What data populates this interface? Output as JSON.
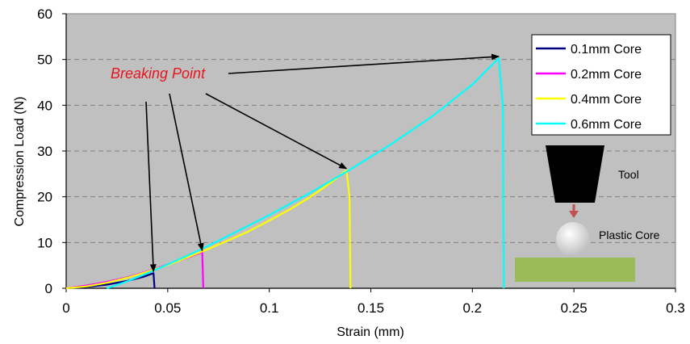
{
  "chart_data": {
    "type": "line",
    "title": "",
    "xlabel": "Strain (mm)",
    "ylabel": "Compression Load (N)",
    "xlim": [
      0,
      0.3
    ],
    "ylim": [
      0,
      60
    ],
    "x_ticks": [
      "0",
      "0.05",
      "0.1",
      "0.15",
      "0.2",
      "0.25",
      "0.3"
    ],
    "y_ticks": [
      "0",
      "10",
      "20",
      "30",
      "40",
      "50",
      "60"
    ],
    "grid": "horizontal dashed",
    "legend_position": "top-right",
    "series": [
      {
        "name": "0.1mm Core",
        "color": "#000080",
        "points": [
          [
            0,
            0
          ],
          [
            0.01,
            0.3
          ],
          [
            0.02,
            0.8
          ],
          [
            0.03,
            1.6
          ],
          [
            0.038,
            2.5
          ],
          [
            0.043,
            3.3
          ],
          [
            0.0435,
            0
          ]
        ]
      },
      {
        "name": "0.2mm Core",
        "color": "#ff00ff",
        "points": [
          [
            0,
            0
          ],
          [
            0.01,
            0.6
          ],
          [
            0.02,
            1.4
          ],
          [
            0.03,
            2.4
          ],
          [
            0.04,
            3.7
          ],
          [
            0.05,
            5.2
          ],
          [
            0.06,
            6.7
          ],
          [
            0.067,
            7.9
          ],
          [
            0.0675,
            0
          ]
        ]
      },
      {
        "name": "0.4mm Core",
        "color": "#ffff00",
        "points": [
          [
            0,
            0
          ],
          [
            0.01,
            0.4
          ],
          [
            0.02,
            1.2
          ],
          [
            0.03,
            2.3
          ],
          [
            0.04,
            3.6
          ],
          [
            0.05,
            5.1
          ],
          [
            0.06,
            6.8
          ],
          [
            0.07,
            8.6
          ],
          [
            0.08,
            10.5
          ],
          [
            0.09,
            12.5
          ],
          [
            0.1,
            14.8
          ],
          [
            0.11,
            17.2
          ],
          [
            0.12,
            19.9
          ],
          [
            0.13,
            23
          ],
          [
            0.138,
            25.8
          ],
          [
            0.1395,
            20
          ],
          [
            0.14,
            0
          ]
        ]
      },
      {
        "name": "0.6mm Core",
        "color": "#00ffff",
        "points": [
          [
            0.02,
            0
          ],
          [
            0.03,
            1.5
          ],
          [
            0.04,
            3.3
          ],
          [
            0.05,
            5.2
          ],
          [
            0.06,
            7.2
          ],
          [
            0.07,
            9.3
          ],
          [
            0.08,
            11.5
          ],
          [
            0.1,
            16
          ],
          [
            0.12,
            20.8
          ],
          [
            0.14,
            26
          ],
          [
            0.16,
            31.5
          ],
          [
            0.18,
            37.5
          ],
          [
            0.2,
            44.5
          ],
          [
            0.213,
            50.3
          ],
          [
            0.215,
            40
          ],
          [
            0.2155,
            0
          ]
        ]
      }
    ],
    "annotations": {
      "label": "Breaking Point",
      "targets": [
        [
          0.043,
          3.3
        ],
        [
          0.067,
          7.9
        ],
        [
          0.138,
          25.8
        ],
        [
          0.213,
          50.3
        ]
      ]
    },
    "inset": {
      "tool_label": "Tool",
      "core_label": "Plastic Core"
    }
  }
}
